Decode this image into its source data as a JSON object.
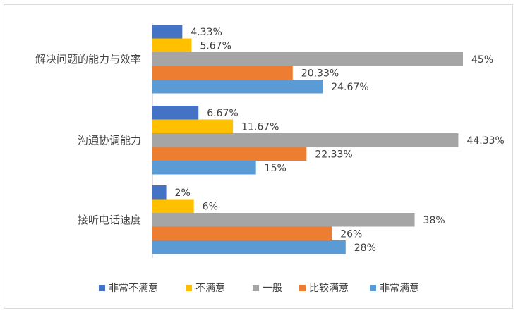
{
  "chart_data": {
    "type": "bar",
    "orientation": "horizontal",
    "categories": [
      "解决问题的能力与效率",
      "沟通协调能力",
      "接听电话速度"
    ],
    "series": [
      {
        "name": "非常不满意",
        "color": "#4472C4",
        "values": [
          4.33,
          6.67,
          2
        ],
        "labels": [
          "4.33%",
          "6.67%",
          "2%"
        ]
      },
      {
        "name": "不满意",
        "color": "#FFC000",
        "values": [
          5.67,
          11.67,
          6
        ],
        "labels": [
          "5.67%",
          "11.67%",
          "6%"
        ]
      },
      {
        "name": "一般",
        "color": "#A5A5A5",
        "values": [
          45,
          44.33,
          38
        ],
        "labels": [
          "45%",
          "44.33%",
          "38%"
        ]
      },
      {
        "name": "比较满意",
        "color": "#ED7D31",
        "values": [
          20.33,
          22.33,
          26
        ],
        "labels": [
          "20.33%",
          "22.33%",
          "26%"
        ]
      },
      {
        "name": "非常满意",
        "color": "#5B9BD5",
        "values": [
          24.67,
          15,
          28
        ],
        "labels": [
          "24.67%",
          "15%",
          "28%"
        ]
      }
    ],
    "xlim": [
      0,
      50
    ],
    "grid": false,
    "legend_position": "bottom"
  }
}
